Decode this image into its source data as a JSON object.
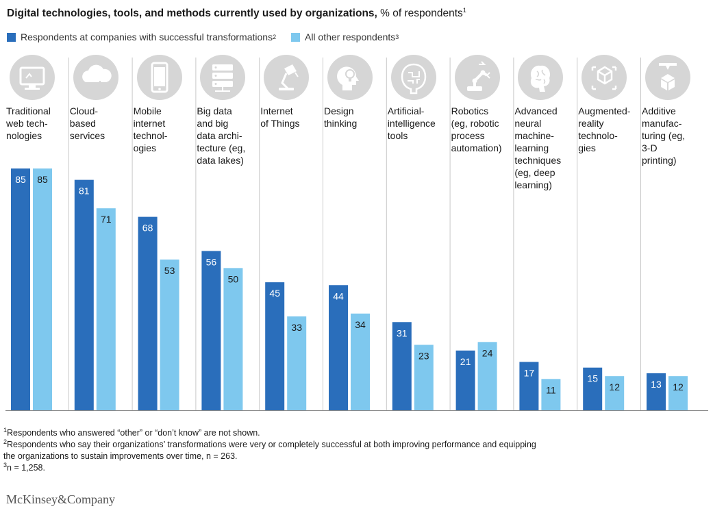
{
  "title": {
    "bold": "Digital technologies, tools, and methods currently used by organizations,",
    "rest": " % of respondents",
    "sup": "1"
  },
  "legend": [
    {
      "label": "Respondents at companies with successful transformations",
      "sup": "2",
      "color": "#2a6ebb"
    },
    {
      "label": "All other respondents",
      "sup": "3",
      "color": "#7ec8ee"
    }
  ],
  "colors": {
    "successful": "#2a6ebb",
    "other": "#7ec8ee",
    "icon_bg": "#d6d6d6",
    "divider": "#c8c8c8",
    "axis": "#888888"
  },
  "chart_data": {
    "type": "bar",
    "ylim": [
      0,
      100
    ],
    "categories": [
      {
        "lines": [
          "Traditional",
          "web tech-",
          "nologies"
        ],
        "icon": "monitor-icon"
      },
      {
        "lines": [
          "Cloud-",
          "based",
          "services"
        ],
        "icon": "cloud-icon"
      },
      {
        "lines": [
          "Mobile",
          "internet",
          "technol-",
          "ogies"
        ],
        "icon": "smartphone-icon"
      },
      {
        "lines": [
          "Big data",
          "and big",
          "data archi-",
          "tecture (eg,",
          "data lakes)"
        ],
        "icon": "server-stack-icon"
      },
      {
        "lines": [
          "Internet",
          "of Things"
        ],
        "icon": "lamp-icon"
      },
      {
        "lines": [
          "Design",
          "thinking"
        ],
        "icon": "head-lightbulb-icon"
      },
      {
        "lines": [
          "Artificial-",
          "intelligence",
          "tools"
        ],
        "icon": "brain-circuit-icon"
      },
      {
        "lines": [
          "Robotics",
          "(eg, robotic",
          "process",
          "automation)"
        ],
        "icon": "robot-arm-icon"
      },
      {
        "lines": [
          "Advanced",
          "neural",
          "machine-",
          "learning",
          "techniques",
          "(eg, deep",
          "learning)"
        ],
        "icon": "brain-icon"
      },
      {
        "lines": [
          "Augmented-",
          "reality",
          "technolo-",
          "gies"
        ],
        "icon": "ar-cube-icon"
      },
      {
        "lines": [
          "Additive",
          "manufac-",
          "turing (eg,",
          "3-D",
          "printing)"
        ],
        "icon": "3d-printer-icon"
      }
    ],
    "series": [
      {
        "name": "Respondents at companies with successful transformations",
        "values": [
          85,
          81,
          68,
          56,
          45,
          44,
          31,
          21,
          17,
          15,
          13
        ]
      },
      {
        "name": "All other respondents",
        "values": [
          85,
          71,
          53,
          50,
          33,
          34,
          23,
          24,
          11,
          12,
          12
        ]
      }
    ]
  },
  "footnotes": [
    {
      "sup": "1",
      "text": "Respondents who answered “other” or “don’t know” are not shown."
    },
    {
      "sup": "2",
      "text": "Respondents who say their organizations’ transformations were very or completely successful at both improving performance and equipping"
    },
    {
      "sup": "",
      "text": " the organizations to sustain improvements over time, n = 263."
    },
    {
      "sup": "3",
      "text": "n = 1,258."
    }
  ],
  "brand": "McKinsey&Company"
}
